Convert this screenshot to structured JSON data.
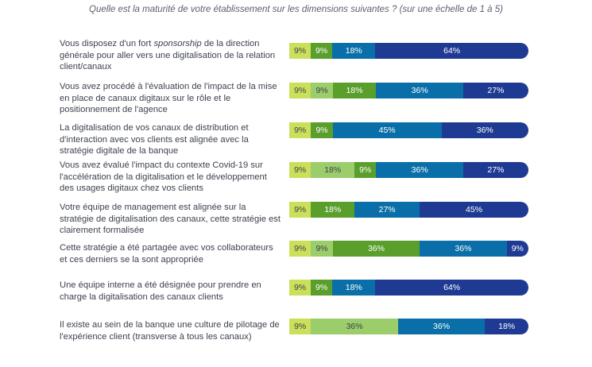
{
  "chart_data": {
    "type": "bar",
    "orientation": "horizontal-stacked",
    "title": "Quelle est la maturité de votre établissement sur les dimensions suivantes ? (sur une échelle de 1 à 5)",
    "scale": [
      "1",
      "2",
      "3",
      "4",
      "5"
    ],
    "colors": [
      "#ccdf5a",
      "#9bcd6a",
      "#5a9e2c",
      "#0a6fa8",
      "#1f3a93"
    ],
    "label_colors": [
      "#3d4250",
      "#3d4250",
      "#ffffff",
      "#ffffff",
      "#ffffff"
    ],
    "rows": [
      {
        "label_parts": [
          [
            "Vous disposez d'un fort ",
            false
          ],
          [
            "sponsorship",
            true
          ],
          [
            " de la direction générale pour aller vers une digitalisation de la relation client/canaux",
            false
          ]
        ],
        "values": [
          9,
          0,
          9,
          18,
          64
        ],
        "labels": [
          "9%",
          "",
          "9%",
          "18%",
          "64%"
        ]
      },
      {
        "label_parts": [
          [
            "Vous avez procédé à l'évaluation de l'impact de la mise en place de canaux digitaux sur le rôle et le positionnement de l'agence",
            false
          ]
        ],
        "values": [
          9,
          9,
          18,
          36,
          27
        ],
        "labels": [
          "9%",
          "9%",
          "18%",
          "36%",
          "27%"
        ]
      },
      {
        "label_parts": [
          [
            "La digitalisation de vos canaux de distribution et d'interaction avec vos clients est alignée avec la stratégie digitale de la banque",
            false
          ]
        ],
        "values": [
          9,
          0,
          9,
          45,
          36
        ],
        "labels": [
          "9%",
          "",
          "9%",
          "45%",
          "36%"
        ]
      },
      {
        "label_parts": [
          [
            "Vous avez évalué l'impact du contexte Covid-19 sur l'accélération de la digitalisation et le développement des usages digitaux chez vos clients",
            false
          ]
        ],
        "values": [
          9,
          18,
          9,
          36,
          27
        ],
        "labels": [
          "9%",
          "18%",
          "9%",
          "36%",
          "27%"
        ]
      },
      {
        "label_parts": [
          [
            "Votre équipe de management est alignée sur la stratégie de digitalisation des canaux, cette stratégie est clairement formalisée",
            false
          ]
        ],
        "values": [
          9,
          0,
          18,
          27,
          45
        ],
        "labels": [
          "9%",
          "",
          "18%",
          "27%",
          "45%"
        ]
      },
      {
        "label_parts": [
          [
            "Cette stratégie a été partagée avec vos collaborateurs et ces derniers se la sont appropriée",
            false
          ]
        ],
        "values": [
          9,
          9,
          36,
          36,
          9
        ],
        "labels": [
          "9%",
          "9%",
          "36%",
          "36%",
          "9%"
        ]
      },
      {
        "label_parts": [
          [
            "Une équipe interne a été désignée pour prendre en charge la digitalisation des canaux clients",
            false
          ]
        ],
        "values": [
          9,
          0,
          9,
          18,
          64
        ],
        "labels": [
          "9%",
          "",
          "9%",
          "18%",
          "64%"
        ]
      },
      {
        "label_parts": [
          [
            "Il existe au sein de la banque une culture de pilotage de l'expérience client (transverse à tous les canaux)",
            false
          ]
        ],
        "values": [
          9,
          36,
          0,
          36,
          18
        ],
        "labels": [
          "9%",
          "36%",
          "",
          "36%",
          "18%"
        ]
      }
    ]
  }
}
